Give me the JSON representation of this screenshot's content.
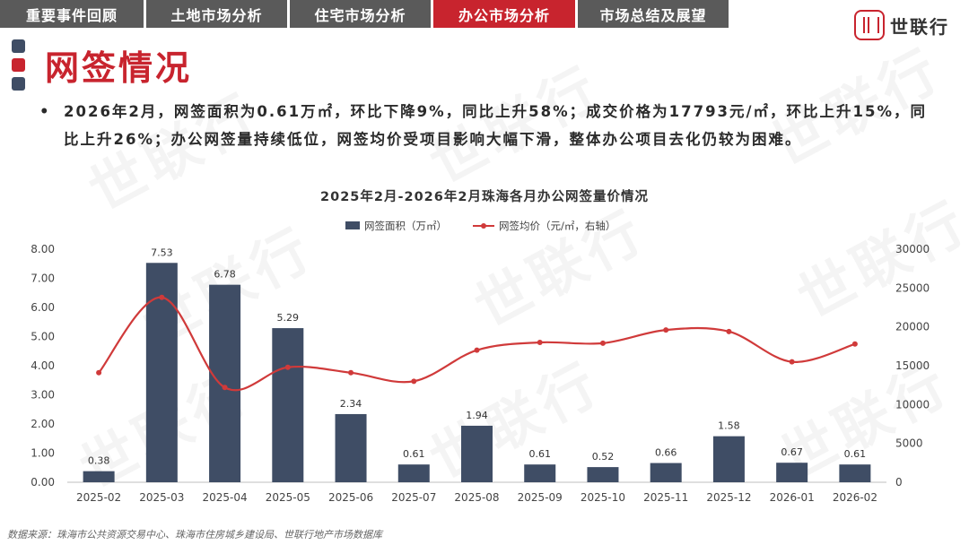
{
  "nav": {
    "tabs": [
      {
        "label": "重要事件回顾",
        "active": false
      },
      {
        "label": "土地市场分析",
        "active": false
      },
      {
        "label": "住宅市场分析",
        "active": false
      },
      {
        "label": "办公市场分析",
        "active": true
      },
      {
        "label": "市场总结及展望",
        "active": false
      }
    ],
    "brand_name": "世联行"
  },
  "section": {
    "title": "网签情况"
  },
  "paragraph": {
    "bullet": "•",
    "text": "2026年2月，网签面积为0.61万㎡，环比下降9%，同比上升58%；成交价格为17793元/㎡，环比上升15%，同比上升26%；办公网签量持续低位，网签均价受项目影响大幅下滑，整体办公项目去化仍较为困难。"
  },
  "watermark": "世联行",
  "colors": {
    "accent": "#c8242e",
    "bar": "#3f4d65",
    "tab": "#5a5a5a",
    "line": "#d03a3a"
  },
  "chart_data": {
    "type": "bar",
    "title": "2025年2月-2026年2月珠海各月办公网签量价情况",
    "categories": [
      "2025-02",
      "2025-03",
      "2025-04",
      "2025-05",
      "2025-06",
      "2025-07",
      "2025-08",
      "2025-09",
      "2025-10",
      "2025-11",
      "2025-12",
      "2026-01",
      "2026-02"
    ],
    "series": [
      {
        "name": "网签面积（万㎡）",
        "type": "bar",
        "axis": "left",
        "values": [
          0.38,
          7.53,
          6.78,
          5.29,
          2.34,
          0.61,
          1.94,
          0.61,
          0.52,
          0.66,
          1.58,
          0.67,
          0.61
        ],
        "labels": [
          "0.38",
          "7.53",
          "6.78",
          "5.29",
          "2.34",
          "0.61",
          "1.94",
          "0.61",
          "0.52",
          "0.66",
          "1.58",
          "0.67",
          "0.61"
        ]
      },
      {
        "name": "网签均价（元/㎡，右轴）",
        "type": "line",
        "axis": "right",
        "values": [
          14100,
          23800,
          12200,
          14800,
          14100,
          13000,
          17000,
          18000,
          17900,
          19600,
          19400,
          15500,
          17793
        ]
      }
    ],
    "y_left": {
      "range": [
        0,
        8
      ],
      "ticks": [
        "0.00",
        "1.00",
        "2.00",
        "3.00",
        "4.00",
        "5.00",
        "6.00",
        "7.00",
        "8.00"
      ]
    },
    "y_right": {
      "range": [
        0,
        30000
      ],
      "ticks": [
        "0",
        "5000",
        "10000",
        "15000",
        "20000",
        "25000",
        "30000"
      ]
    },
    "legend_position": "top-center",
    "grid": false
  },
  "source": "数据来源：珠海市公共资源交易中心、珠海市住房城乡建设局、世联行地产市场数据库"
}
